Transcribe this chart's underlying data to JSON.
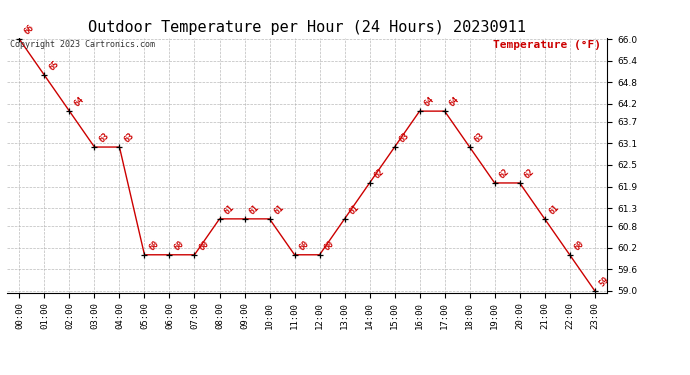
{
  "title": "Outdoor Temperature per Hour (24 Hours) 20230911",
  "copyright_text": "Copyright 2023 Cartronics.com",
  "legend_label": "Temperature (°F)",
  "hours": [
    0,
    1,
    2,
    3,
    4,
    5,
    6,
    7,
    8,
    9,
    10,
    11,
    12,
    13,
    14,
    15,
    16,
    17,
    18,
    19,
    20,
    21,
    22,
    23
  ],
  "hour_labels": [
    "00:00",
    "01:00",
    "02:00",
    "03:00",
    "04:00",
    "05:00",
    "06:00",
    "07:00",
    "08:00",
    "09:00",
    "10:00",
    "11:00",
    "12:00",
    "13:00",
    "14:00",
    "15:00",
    "16:00",
    "17:00",
    "18:00",
    "19:00",
    "20:00",
    "21:00",
    "22:00",
    "23:00"
  ],
  "temperatures": [
    66,
    65,
    64,
    63,
    63,
    60,
    60,
    60,
    61,
    61,
    61,
    60,
    60,
    61,
    62,
    63,
    64,
    64,
    63,
    62,
    62,
    61,
    60,
    59
  ],
  "temp_labels": [
    "66",
    "65",
    "64",
    "63",
    "63",
    "60",
    "60",
    "60",
    "61",
    "61",
    "61",
    "60",
    "60",
    "61",
    "62",
    "63",
    "64",
    "64",
    "63",
    "62",
    "62",
    "61",
    "60",
    "59"
  ],
  "line_color": "#cc0000",
  "marker_color": "#000000",
  "label_color": "#cc0000",
  "grid_color": "#aaaaaa",
  "bg_color": "#ffffff",
  "ylim_min": 59.0,
  "ylim_max": 66.0,
  "yticks": [
    59.0,
    59.6,
    60.2,
    60.8,
    61.3,
    61.9,
    62.5,
    63.1,
    63.7,
    64.2,
    64.8,
    65.4,
    66.0
  ],
  "title_fontsize": 11,
  "label_fontsize": 6,
  "legend_fontsize": 8,
  "copyright_fontsize": 6,
  "tick_fontsize": 6.5
}
